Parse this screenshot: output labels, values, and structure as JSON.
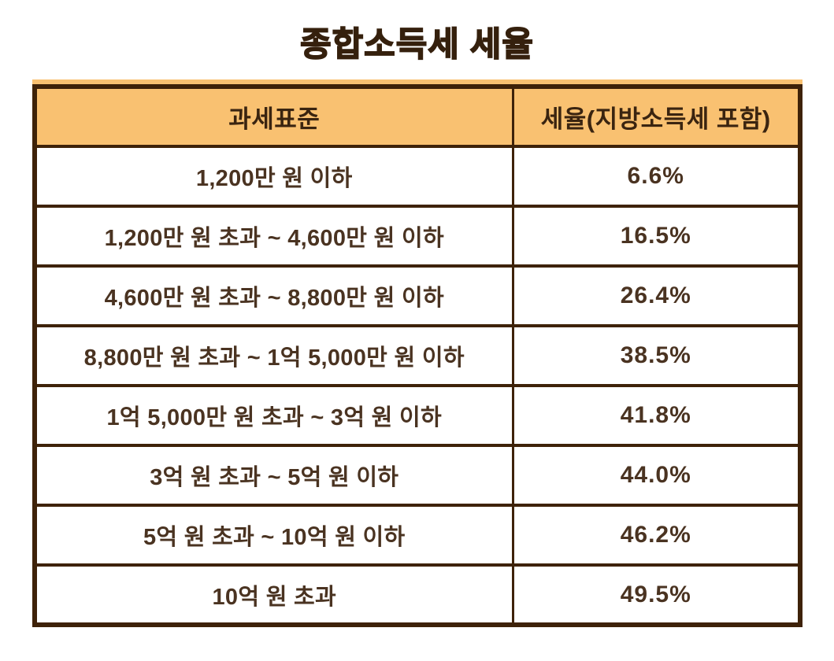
{
  "title": "종합소득세 세율",
  "chart_data": {
    "type": "table",
    "title": "종합소득세 세율",
    "columns": [
      "과세표준",
      "세율(지방소득세 포함)"
    ],
    "rows": [
      [
        "1,200만 원 이하",
        "6.6%"
      ],
      [
        "1,200만 원 초과 ~ 4,600만 원 이하",
        "16.5%"
      ],
      [
        "4,600만 원 초과 ~ 8,800만 원 이하",
        "26.4%"
      ],
      [
        "8,800만 원 초과 ~ 1억 5,000만 원 이하",
        "38.5%"
      ],
      [
        "1억 5,000만 원 초과 ~ 3억 원 이하",
        "41.8%"
      ],
      [
        "3억 원 초과 ~ 5억 원 이하",
        "44.0%"
      ],
      [
        "5억 원 초과 ~ 10억 원 이하",
        "46.2%"
      ],
      [
        "10억 원 초과",
        "49.5%"
      ]
    ],
    "layout_hints": {
      "header_position": "top-row",
      "grid": "on",
      "text_alignment": "center"
    }
  },
  "colors": {
    "header_background": "#F9C171",
    "border": "#3E2209",
    "title_text": "#35200D",
    "body_text": "#4A3321",
    "page_background": "#FFFFFF"
  }
}
